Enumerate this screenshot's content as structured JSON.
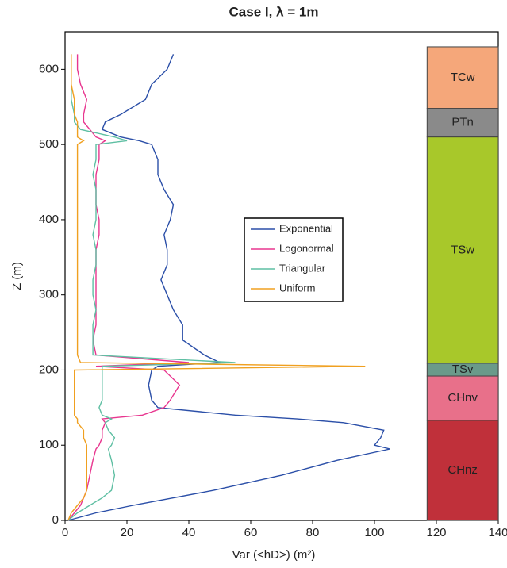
{
  "chart_data": {
    "type": "line",
    "title": "Case I, λ = 1m",
    "xlabel": "Var (<hD>) (m²)",
    "ylabel": "Z (m)",
    "xlim": [
      0,
      140
    ],
    "xticks": [
      0,
      20,
      40,
      60,
      80,
      100,
      120,
      140
    ],
    "ylim": [
      0,
      650
    ],
    "yticks": [
      0,
      100,
      200,
      300,
      400,
      500,
      600
    ],
    "legend": "center",
    "z": [
      0,
      10,
      20,
      30,
      40,
      60,
      80,
      95,
      100,
      110,
      120,
      130,
      135,
      140,
      150,
      160,
      180,
      200,
      205,
      210,
      220,
      240,
      260,
      280,
      300,
      320,
      340,
      360,
      380,
      400,
      420,
      440,
      460,
      480,
      500,
      505,
      510,
      520,
      530,
      540,
      560,
      580,
      600,
      620
    ],
    "series": [
      {
        "name": "Exponential",
        "color": "#2b4fa8",
        "values": [
          1,
          10,
          22,
          35,
          48,
          70,
          88,
          105,
          100,
          102,
          103,
          90,
          75,
          55,
          30,
          28,
          27,
          28,
          30,
          50,
          45,
          38,
          38,
          35,
          33,
          31,
          33,
          33,
          32,
          34,
          35,
          32,
          30,
          30,
          28,
          24,
          18,
          12,
          13,
          18,
          26,
          28,
          33,
          35
        ]
      },
      {
        "name": "Logonormal",
        "color": "#e8368f",
        "values": [
          1,
          3,
          5,
          6,
          7,
          8,
          9,
          10,
          11,
          12,
          12,
          13,
          12,
          25,
          32,
          34,
          37,
          32,
          10,
          40,
          10,
          9,
          10,
          10,
          10,
          10,
          10,
          10,
          11,
          11,
          10,
          10,
          10,
          11,
          11,
          13,
          10,
          8,
          6,
          6,
          7,
          5,
          4,
          4
        ]
      },
      {
        "name": "Triangular",
        "color": "#5fbfa3",
        "values": [
          1,
          4,
          8,
          12,
          15,
          16,
          15,
          14,
          15,
          16,
          14,
          13,
          15,
          12,
          11,
          12,
          12,
          12,
          12,
          55,
          9,
          9,
          9,
          10,
          9,
          9,
          10,
          10,
          9,
          10,
          10,
          10,
          9,
          10,
          10,
          20,
          16,
          5,
          3,
          3,
          2,
          2,
          2,
          2
        ]
      },
      {
        "name": "Uniform",
        "color": "#f0a020",
        "values": [
          1,
          2,
          4,
          6,
          7,
          7,
          7,
          7,
          7,
          6,
          6,
          4,
          4,
          3,
          3,
          3,
          3,
          3,
          97,
          5,
          4,
          4,
          4,
          4,
          4,
          4,
          4,
          4,
          4,
          4,
          4,
          4,
          4,
          4,
          4,
          6,
          4,
          4,
          4,
          3,
          3,
          2,
          2,
          2
        ]
      }
    ],
    "column_x": [
      117,
      140
    ],
    "layers": [
      {
        "name": "TCw",
        "color": "#f5a77a",
        "bottom": 548,
        "top": 630
      },
      {
        "name": "PTn",
        "color": "#8a8a8a",
        "bottom": 510,
        "top": 548
      },
      {
        "name": "TSw",
        "color": "#a8c82a",
        "bottom": 209,
        "top": 510
      },
      {
        "name": "TSv",
        "color": "#6a9a8a",
        "bottom": 192,
        "top": 209
      },
      {
        "name": "CHnv",
        "color": "#e8708a",
        "bottom": 133,
        "top": 192
      },
      {
        "name": "CHnz",
        "color": "#c0303a",
        "bottom": 0,
        "top": 133
      }
    ]
  }
}
